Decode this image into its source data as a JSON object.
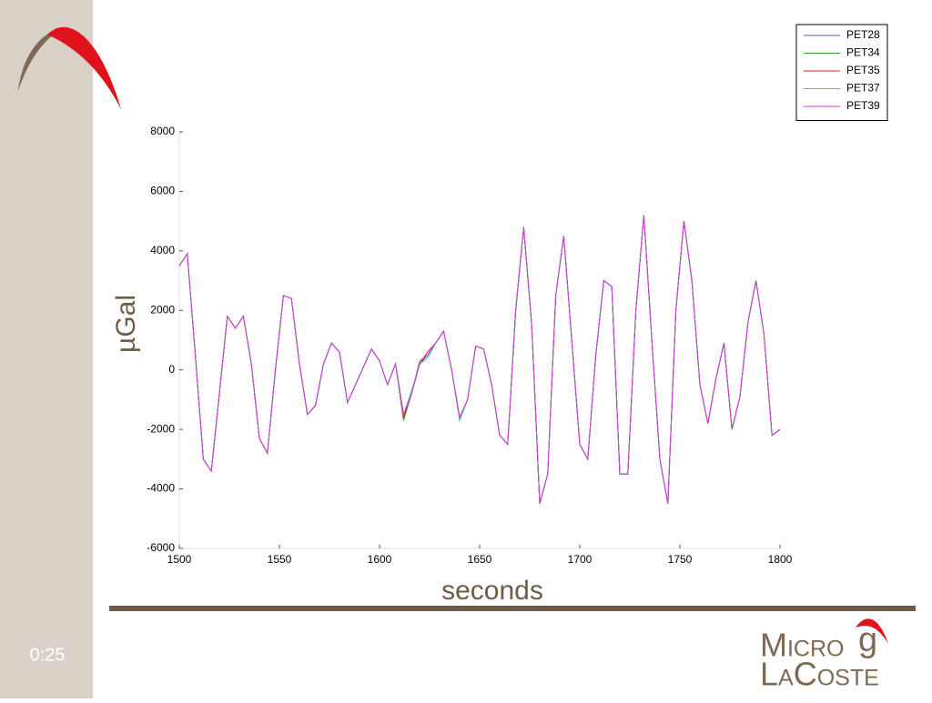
{
  "slide": {
    "timer": "0:25",
    "logo": {
      "top": "Micro",
      "g": "g",
      "bottom": "LaCoste"
    }
  },
  "chart_data": {
    "type": "line",
    "xlabel": "seconds",
    "ylabel": "µGal",
    "x": [
      1500,
      1504,
      1508,
      1512,
      1516,
      1520,
      1524,
      1528,
      1532,
      1536,
      1540,
      1544,
      1548,
      1552,
      1556,
      1560,
      1564,
      1568,
      1572,
      1576,
      1580,
      1584,
      1588,
      1592,
      1596,
      1600,
      1604,
      1608,
      1612,
      1616,
      1620,
      1624,
      1628,
      1632,
      1636,
      1640,
      1644,
      1648,
      1652,
      1656,
      1660,
      1664,
      1668,
      1672,
      1676,
      1680,
      1684,
      1688,
      1692,
      1696,
      1700,
      1704,
      1708,
      1712,
      1716,
      1720,
      1724,
      1728,
      1732,
      1736,
      1740,
      1744,
      1748,
      1752,
      1756,
      1760,
      1764,
      1768,
      1772,
      1776,
      1780,
      1784,
      1788,
      1792,
      1796,
      1800
    ],
    "series": [
      {
        "name": "PET28",
        "color": "#5a5ab4",
        "values": [
          3500,
          3900,
          500,
          -3000,
          -3400,
          -800,
          1800,
          1400,
          1800,
          200,
          -2300,
          -2800,
          0,
          2500,
          2400,
          200,
          -1500,
          -1200,
          200,
          900,
          600,
          -1100,
          -500,
          100,
          700,
          300,
          -500,
          200,
          -1500,
          -800,
          200,
          500,
          900,
          1300,
          0,
          -1600,
          -1000,
          800,
          700,
          -500,
          -2200,
          -2500,
          2000,
          4800,
          1500,
          -4500,
          -3500,
          2500,
          4500,
          1000,
          -2500,
          -3000,
          500,
          3000,
          2800,
          -3500,
          -3500,
          2000,
          5200,
          1000,
          -3000,
          -4500,
          2000,
          5000,
          3000,
          -500,
          -1800,
          -300,
          900,
          -2000,
          -900,
          1600,
          3000,
          1200,
          -2200,
          -2000
        ]
      },
      {
        "name": "PET34",
        "color": "#2ca02c",
        "values": [
          3500,
          3900,
          500,
          -3000,
          -3400,
          -800,
          1800,
          1400,
          1800,
          200,
          -2300,
          -2800,
          0,
          2500,
          2400,
          200,
          -1500,
          -1200,
          200,
          900,
          600,
          -1100,
          -500,
          100,
          700,
          300,
          -500,
          200,
          -1700,
          -800,
          300,
          500,
          900,
          1300,
          0,
          -1600,
          -1000,
          800,
          700,
          -500,
          -2200,
          -2500,
          2000,
          4800,
          1500,
          -4500,
          -3500,
          2500,
          4500,
          1000,
          -2500,
          -3000,
          500,
          3000,
          2800,
          -3500,
          -3500,
          2000,
          5200,
          1000,
          -3000,
          -4500,
          2000,
          5000,
          3000,
          -500,
          -1800,
          -300,
          900,
          -2000,
          -900,
          1600,
          3000,
          1200,
          -2200,
          -2000
        ]
      },
      {
        "name": "PET35",
        "color": "#e02020",
        "values": [
          3500,
          3900,
          500,
          -3000,
          -3400,
          -800,
          1800,
          1400,
          1800,
          200,
          -2300,
          -2800,
          0,
          2500,
          2400,
          200,
          -1500,
          -1200,
          200,
          900,
          600,
          -1100,
          -500,
          100,
          700,
          300,
          -500,
          200,
          -1600,
          -800,
          200,
          600,
          900,
          1300,
          0,
          -1600,
          -1000,
          800,
          700,
          -500,
          -2200,
          -2500,
          2000,
          4800,
          1500,
          -4500,
          -3500,
          2500,
          4500,
          1000,
          -2500,
          -3000,
          500,
          3000,
          2800,
          -3500,
          -3500,
          2000,
          5200,
          1000,
          -3000,
          -4500,
          2000,
          5000,
          3000,
          -500,
          -1800,
          -300,
          900,
          -2000,
          -900,
          1600,
          3000,
          1200,
          -2200,
          -2000
        ]
      },
      {
        "name": "PET37",
        "color": "#30c0d0",
        "values": [
          3500,
          3900,
          500,
          -3000,
          -3400,
          -800,
          1800,
          1400,
          1800,
          200,
          -2300,
          -2800,
          0,
          2500,
          2400,
          200,
          -1500,
          -1200,
          200,
          900,
          600,
          -1100,
          -500,
          100,
          700,
          300,
          -500,
          200,
          -1500,
          -700,
          200,
          400,
          900,
          1300,
          0,
          -1700,
          -1000,
          800,
          700,
          -500,
          -2200,
          -2500,
          2000,
          4800,
          1500,
          -4500,
          -3500,
          2500,
          4500,
          1000,
          -2500,
          -3000,
          500,
          3000,
          2800,
          -3500,
          -3500,
          2000,
          5200,
          1000,
          -3000,
          -4500,
          2000,
          5000,
          3000,
          -500,
          -1800,
          -300,
          900,
          -2000,
          -900,
          1600,
          3000,
          1200,
          -2200,
          -2000
        ]
      },
      {
        "name": "PET39",
        "color": "#d040d0",
        "values": [
          3500,
          3900,
          500,
          -3000,
          -3400,
          -800,
          1800,
          1400,
          1800,
          200,
          -2300,
          -2800,
          0,
          2500,
          2400,
          200,
          -1500,
          -1200,
          200,
          900,
          600,
          -1100,
          -500,
          100,
          700,
          300,
          -500,
          200,
          -1500,
          -800,
          200,
          500,
          900,
          1300,
          0,
          -1600,
          -1000,
          800,
          700,
          -500,
          -2200,
          -2500,
          2000,
          4800,
          1500,
          -4500,
          -3500,
          2500,
          4500,
          1000,
          -2500,
          -3000,
          500,
          3000,
          2800,
          -3500,
          -3500,
          2000,
          5200,
          1000,
          -3000,
          -4500,
          2000,
          5000,
          3000,
          -500,
          -1800,
          -300,
          900,
          -2000,
          -900,
          1600,
          3000,
          1200,
          -2200,
          -2000
        ]
      }
    ],
    "xlim": [
      1500,
      1800
    ],
    "xticks": [
      1500,
      1550,
      1600,
      1650,
      1700,
      1750,
      1800
    ],
    "ylim": [
      -6000,
      8000
    ],
    "yticks": [
      -6000,
      -4000,
      -2000,
      0,
      2000,
      4000,
      6000,
      8000
    ],
    "grid": false,
    "legend": "upper right"
  }
}
